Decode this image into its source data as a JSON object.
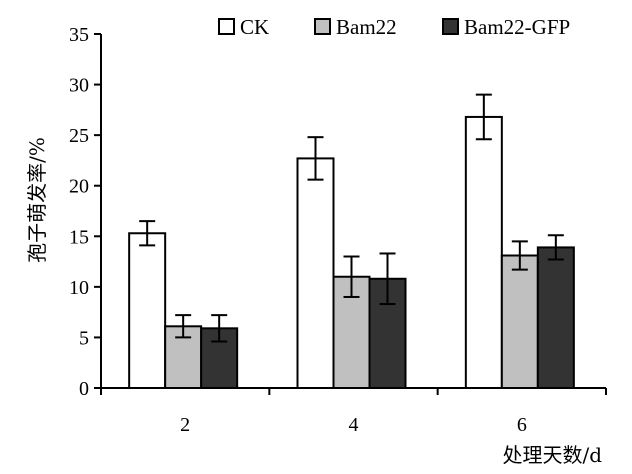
{
  "chart_data": {
    "type": "bar",
    "categories": [
      "2",
      "4",
      "6"
    ],
    "series": [
      {
        "name": "CK",
        "values": [
          15.3,
          22.7,
          26.8
        ],
        "errors": [
          1.2,
          2.1,
          2.2
        ],
        "color": "#ffffff"
      },
      {
        "name": "Bam22",
        "values": [
          6.1,
          11.0,
          13.1
        ],
        "errors": [
          1.1,
          2.0,
          1.4
        ],
        "color": "#c0c0c0"
      },
      {
        "name": "Bam22-GFP",
        "values": [
          5.9,
          10.8,
          13.9
        ],
        "errors": [
          1.3,
          2.5,
          1.2
        ],
        "color": "#333333"
      }
    ],
    "xlabel": "处理天数/d",
    "ylabel": "孢子萌发率/%",
    "ylim": [
      0,
      35
    ],
    "yticks": [
      0,
      5,
      10,
      15,
      20,
      25,
      30,
      35
    ],
    "grid": false,
    "legend_position": "top"
  }
}
